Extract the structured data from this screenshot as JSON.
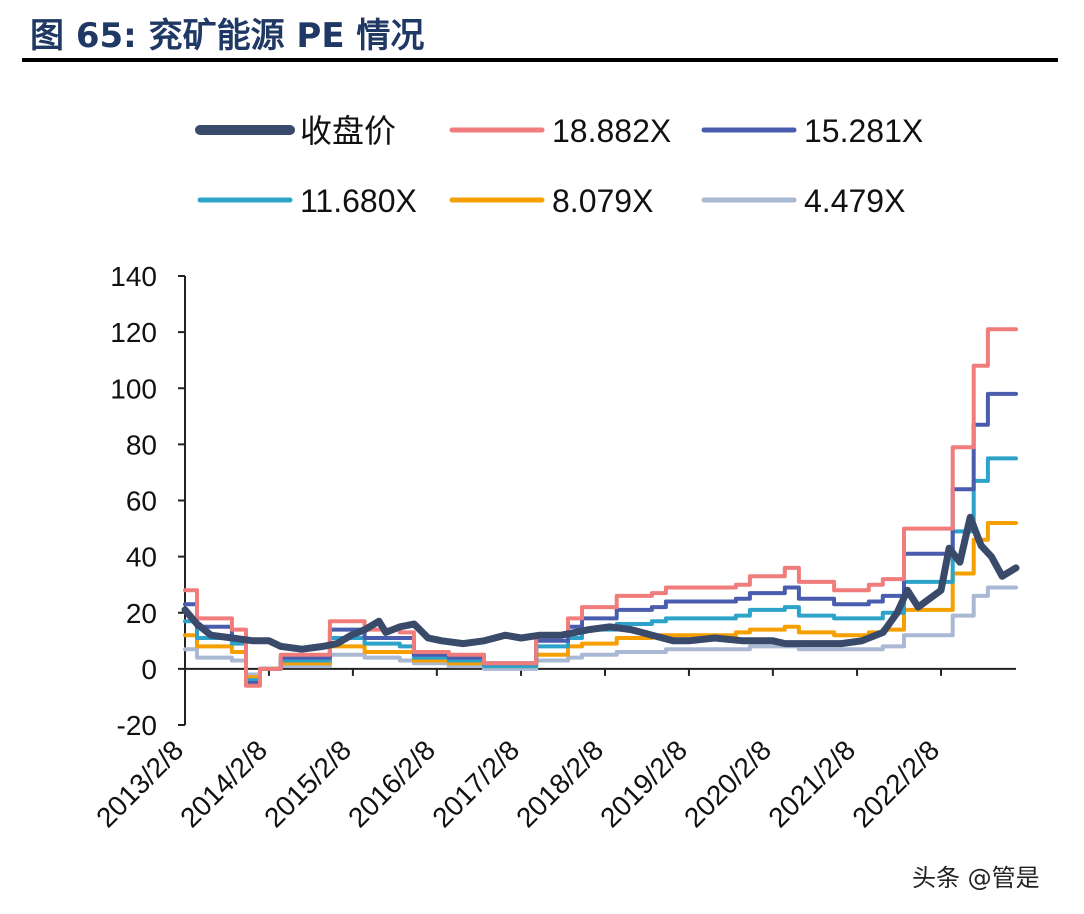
{
  "figure": {
    "title": "图 65: 兖矿能源 PE 情况",
    "watermark": "头条 @管是"
  },
  "chart_data": {
    "type": "line",
    "title": "",
    "xlabel": "",
    "ylabel": "",
    "ylim": [
      -20,
      140
    ],
    "yticks": [
      -20,
      0,
      20,
      40,
      60,
      80,
      100,
      120,
      140
    ],
    "xticks": [
      "2013/2/8",
      "2014/2/8",
      "2015/2/8",
      "2016/2/8",
      "2017/2/8",
      "2018/2/8",
      "2019/2/8",
      "2020/2/8",
      "2021/2/8",
      "2022/2/8"
    ],
    "xrange": [
      "2013/2/8",
      "2022/12/31"
    ],
    "grid": false,
    "legend_position": "top",
    "series": [
      {
        "name": "收盘价",
        "color": "#3a4a6b",
        "style": "thick",
        "points": [
          [
            "2013/2/8",
            21
          ],
          [
            "2013/4/1",
            16
          ],
          [
            "2013/6/1",
            12
          ],
          [
            "2013/9/1",
            11
          ],
          [
            "2013/12/1",
            10
          ],
          [
            "2014/2/8",
            10
          ],
          [
            "2014/4/1",
            8
          ],
          [
            "2014/7/1",
            7
          ],
          [
            "2014/10/1",
            8
          ],
          [
            "2014/12/1",
            9
          ],
          [
            "2015/2/1",
            12
          ],
          [
            "2015/4/1",
            14
          ],
          [
            "2015/6/1",
            17
          ],
          [
            "2015/7/1",
            13
          ],
          [
            "2015/9/1",
            15
          ],
          [
            "2015/11/1",
            16
          ],
          [
            "2016/1/1",
            11
          ],
          [
            "2016/3/1",
            10
          ],
          [
            "2016/6/1",
            9
          ],
          [
            "2016/9/1",
            10
          ],
          [
            "2016/12/1",
            12
          ],
          [
            "2017/2/8",
            11
          ],
          [
            "2017/5/1",
            12
          ],
          [
            "2017/8/1",
            12
          ],
          [
            "2017/10/1",
            13
          ],
          [
            "2017/12/1",
            14
          ],
          [
            "2018/3/1",
            15
          ],
          [
            "2018/6/1",
            14
          ],
          [
            "2018/9/1",
            12
          ],
          [
            "2018/12/1",
            10
          ],
          [
            "2019/2/8",
            10
          ],
          [
            "2019/6/1",
            11
          ],
          [
            "2019/10/1",
            10
          ],
          [
            "2020/2/8",
            10
          ],
          [
            "2020/4/1",
            9
          ],
          [
            "2020/8/1",
            9
          ],
          [
            "2020/12/1",
            9
          ],
          [
            "2021/3/1",
            10
          ],
          [
            "2021/6/1",
            13
          ],
          [
            "2021/8/1",
            20
          ],
          [
            "2021/9/15",
            28
          ],
          [
            "2021/11/1",
            22
          ],
          [
            "2022/2/8",
            28
          ],
          [
            "2022/3/15",
            43
          ],
          [
            "2022/5/1",
            38
          ],
          [
            "2022/6/15",
            54
          ],
          [
            "2022/8/1",
            44
          ],
          [
            "2022/9/15",
            40
          ],
          [
            "2022/11/1",
            33
          ],
          [
            "2022/12/31",
            36
          ]
        ]
      },
      {
        "name": "18.882X",
        "color": "#f07c7c",
        "style": "step",
        "points": [
          [
            "2013/2/8",
            28
          ],
          [
            "2013/4/1",
            18
          ],
          [
            "2013/8/31",
            14
          ],
          [
            "2013/10/31",
            -6
          ],
          [
            "2013/12/31",
            0
          ],
          [
            "2014/3/31",
            5
          ],
          [
            "2014/8/31",
            5
          ],
          [
            "2014/10/31",
            17
          ],
          [
            "2015/3/31",
            14
          ],
          [
            "2015/8/31",
            13
          ],
          [
            "2015/10/31",
            6
          ],
          [
            "2016/3/31",
            5
          ],
          [
            "2016/8/31",
            2
          ],
          [
            "2017/3/31",
            2
          ],
          [
            "2017/4/15",
            12
          ],
          [
            "2017/8/31",
            18
          ],
          [
            "2017/10/31",
            22
          ],
          [
            "2018/3/31",
            26
          ],
          [
            "2018/8/31",
            27
          ],
          [
            "2018/10/31",
            29
          ],
          [
            "2019/3/31",
            29
          ],
          [
            "2019/8/31",
            30
          ],
          [
            "2019/10/31",
            33
          ],
          [
            "2020/3/31",
            36
          ],
          [
            "2020/5/31",
            31
          ],
          [
            "2020/8/31",
            31
          ],
          [
            "2020/10/31",
            28
          ],
          [
            "2021/3/31",
            30
          ],
          [
            "2021/5/31",
            32
          ],
          [
            "2021/8/31",
            50
          ],
          [
            "2021/10/31",
            50
          ],
          [
            "2022/3/31",
            79
          ],
          [
            "2022/6/30",
            108
          ],
          [
            "2022/8/31",
            121
          ],
          [
            "2022/12/31",
            121
          ]
        ]
      },
      {
        "name": "15.281X",
        "color": "#4a5cae",
        "style": "step",
        "points": [
          [
            "2013/2/8",
            23
          ],
          [
            "2013/4/1",
            15
          ],
          [
            "2013/8/31",
            11
          ],
          [
            "2013/10/31",
            -5
          ],
          [
            "2013/12/31",
            0
          ],
          [
            "2014/3/31",
            4
          ],
          [
            "2014/8/31",
            4
          ],
          [
            "2014/10/31",
            14
          ],
          [
            "2015/3/31",
            11
          ],
          [
            "2015/8/31",
            11
          ],
          [
            "2015/10/31",
            5
          ],
          [
            "2016/3/31",
            4
          ],
          [
            "2016/8/31",
            2
          ],
          [
            "2017/3/31",
            2
          ],
          [
            "2017/4/15",
            10
          ],
          [
            "2017/8/31",
            15
          ],
          [
            "2017/10/31",
            18
          ],
          [
            "2018/3/31",
            21
          ],
          [
            "2018/8/31",
            22
          ],
          [
            "2018/10/31",
            24
          ],
          [
            "2019/3/31",
            24
          ],
          [
            "2019/8/31",
            25
          ],
          [
            "2019/10/31",
            27
          ],
          [
            "2020/3/31",
            29
          ],
          [
            "2020/5/31",
            25
          ],
          [
            "2020/8/31",
            25
          ],
          [
            "2020/10/31",
            23
          ],
          [
            "2021/3/31",
            24
          ],
          [
            "2021/5/31",
            26
          ],
          [
            "2021/8/31",
            41
          ],
          [
            "2021/10/31",
            41
          ],
          [
            "2022/3/31",
            64
          ],
          [
            "2022/6/30",
            87
          ],
          [
            "2022/8/31",
            98
          ],
          [
            "2022/12/31",
            98
          ]
        ]
      },
      {
        "name": "11.680X",
        "color": "#2ea3c9",
        "style": "step",
        "points": [
          [
            "2013/2/8",
            17
          ],
          [
            "2013/4/1",
            11
          ],
          [
            "2013/8/31",
            9
          ],
          [
            "2013/10/31",
            -4
          ],
          [
            "2013/12/31",
            0
          ],
          [
            "2014/3/31",
            3
          ],
          [
            "2014/8/31",
            3
          ],
          [
            "2014/10/31",
            11
          ],
          [
            "2015/3/31",
            9
          ],
          [
            "2015/8/31",
            8
          ],
          [
            "2015/10/31",
            4
          ],
          [
            "2016/3/31",
            3
          ],
          [
            "2016/8/31",
            1
          ],
          [
            "2017/3/31",
            1
          ],
          [
            "2017/4/15",
            8
          ],
          [
            "2017/8/31",
            11
          ],
          [
            "2017/10/31",
            14
          ],
          [
            "2018/3/31",
            16
          ],
          [
            "2018/8/31",
            17
          ],
          [
            "2018/10/31",
            18
          ],
          [
            "2019/3/31",
            18
          ],
          [
            "2019/8/31",
            19
          ],
          [
            "2019/10/31",
            21
          ],
          [
            "2020/3/31",
            22
          ],
          [
            "2020/5/31",
            19
          ],
          [
            "2020/8/31",
            19
          ],
          [
            "2020/10/31",
            18
          ],
          [
            "2021/3/31",
            18
          ],
          [
            "2021/5/31",
            20
          ],
          [
            "2021/8/31",
            31
          ],
          [
            "2021/10/31",
            31
          ],
          [
            "2022/3/31",
            49
          ],
          [
            "2022/6/30",
            67
          ],
          [
            "2022/8/31",
            75
          ],
          [
            "2022/12/31",
            75
          ]
        ]
      },
      {
        "name": "8.079X",
        "color": "#f5a000",
        "style": "step",
        "points": [
          [
            "2013/2/8",
            12
          ],
          [
            "2013/4/1",
            8
          ],
          [
            "2013/8/31",
            6
          ],
          [
            "2013/10/31",
            -3
          ],
          [
            "2013/12/31",
            0
          ],
          [
            "2014/3/31",
            2
          ],
          [
            "2014/8/31",
            2
          ],
          [
            "2014/10/31",
            8
          ],
          [
            "2015/3/31",
            6
          ],
          [
            "2015/8/31",
            6
          ],
          [
            "2015/10/31",
            3
          ],
          [
            "2016/3/31",
            2
          ],
          [
            "2016/8/31",
            1
          ],
          [
            "2017/3/31",
            1
          ],
          [
            "2017/4/15",
            5
          ],
          [
            "2017/8/31",
            8
          ],
          [
            "2017/10/31",
            9
          ],
          [
            "2018/3/31",
            11
          ],
          [
            "2018/8/31",
            12
          ],
          [
            "2018/10/31",
            12
          ],
          [
            "2019/3/31",
            12
          ],
          [
            "2019/8/31",
            13
          ],
          [
            "2019/10/31",
            14
          ],
          [
            "2020/3/31",
            15
          ],
          [
            "2020/5/31",
            13
          ],
          [
            "2020/8/31",
            13
          ],
          [
            "2020/10/31",
            12
          ],
          [
            "2021/3/31",
            13
          ],
          [
            "2021/5/31",
            14
          ],
          [
            "2021/8/31",
            21
          ],
          [
            "2021/10/31",
            21
          ],
          [
            "2022/3/31",
            34
          ],
          [
            "2022/6/30",
            46
          ],
          [
            "2022/8/31",
            52
          ],
          [
            "2022/12/31",
            52
          ]
        ]
      },
      {
        "name": "4.479X",
        "color": "#a9b8d3",
        "style": "step",
        "points": [
          [
            "2013/2/8",
            7
          ],
          [
            "2013/4/1",
            4
          ],
          [
            "2013/8/31",
            3
          ],
          [
            "2013/10/31",
            -2
          ],
          [
            "2013/12/31",
            0
          ],
          [
            "2014/3/31",
            1
          ],
          [
            "2014/8/31",
            1
          ],
          [
            "2014/10/31",
            5
          ],
          [
            "2015/3/31",
            4
          ],
          [
            "2015/8/31",
            3
          ],
          [
            "2015/10/31",
            2
          ],
          [
            "2016/3/31",
            1
          ],
          [
            "2016/8/31",
            0
          ],
          [
            "2017/3/31",
            0
          ],
          [
            "2017/4/15",
            3
          ],
          [
            "2017/8/31",
            4
          ],
          [
            "2017/10/31",
            5
          ],
          [
            "2018/3/31",
            6
          ],
          [
            "2018/8/31",
            6
          ],
          [
            "2018/10/31",
            7
          ],
          [
            "2019/3/31",
            7
          ],
          [
            "2019/8/31",
            7
          ],
          [
            "2019/10/31",
            8
          ],
          [
            "2020/3/31",
            8
          ],
          [
            "2020/5/31",
            7
          ],
          [
            "2020/8/31",
            7
          ],
          [
            "2020/10/31",
            7
          ],
          [
            "2021/3/31",
            7
          ],
          [
            "2021/5/31",
            8
          ],
          [
            "2021/8/31",
            12
          ],
          [
            "2021/10/31",
            12
          ],
          [
            "2022/3/31",
            19
          ],
          [
            "2022/6/30",
            26
          ],
          [
            "2022/8/31",
            29
          ],
          [
            "2022/12/31",
            29
          ]
        ]
      }
    ]
  }
}
